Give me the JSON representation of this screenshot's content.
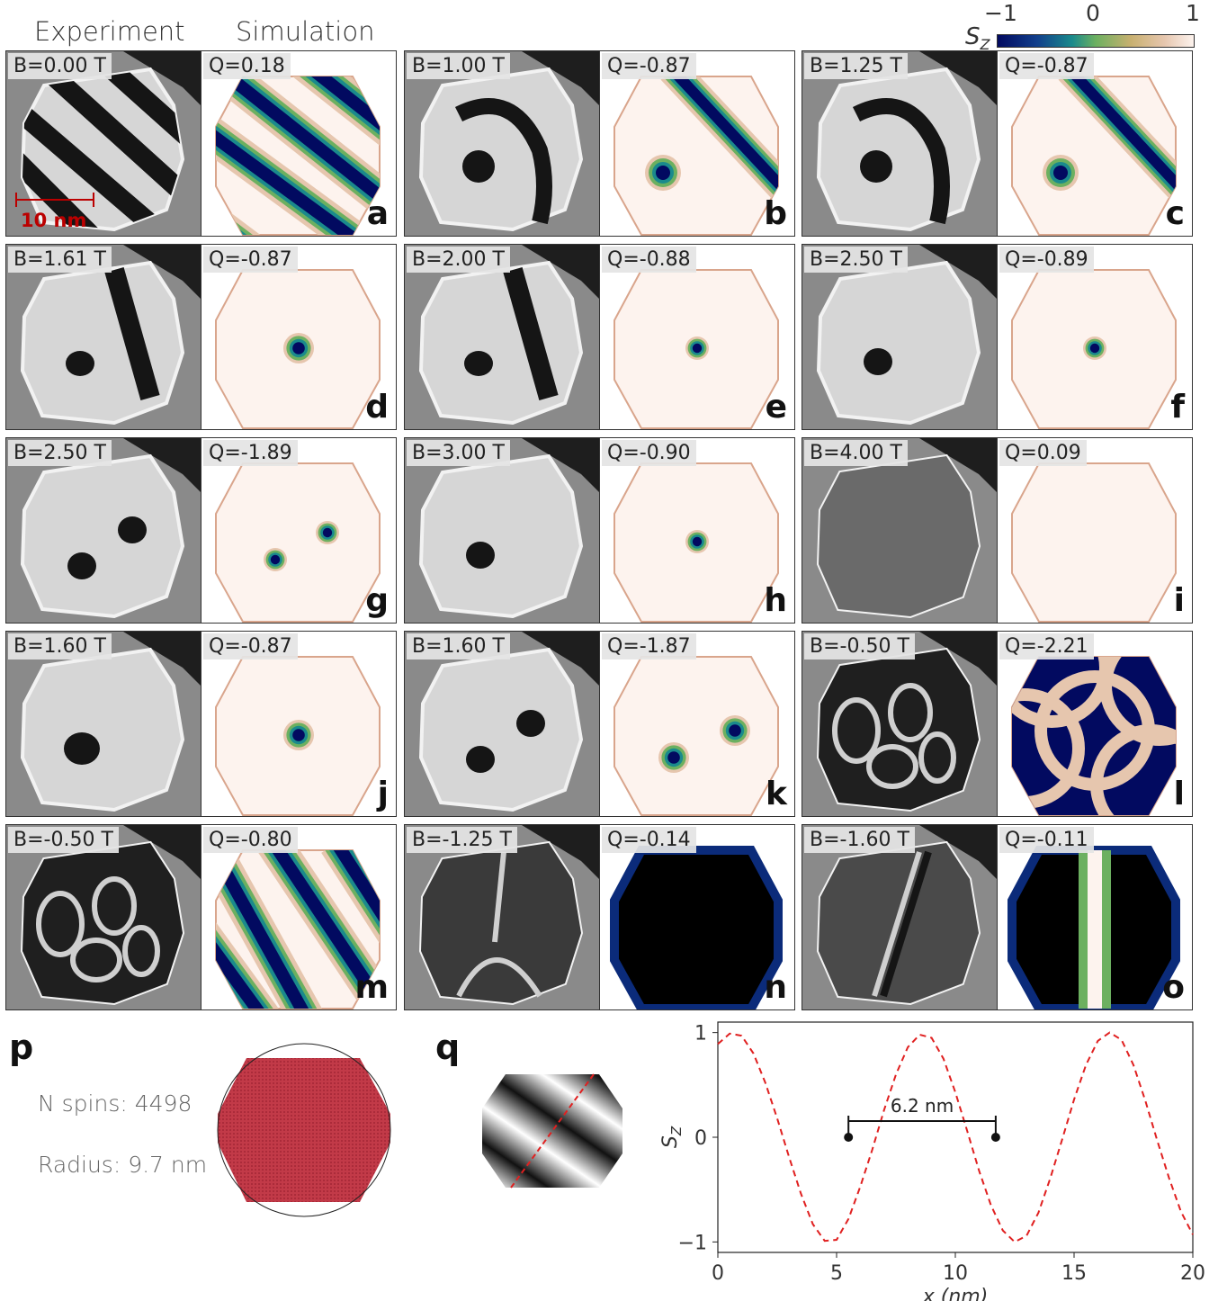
{
  "headers": {
    "experiment": "Experiment",
    "simulation": "Simulation"
  },
  "colorbar": {
    "symbol": "S_Z",
    "ticks": [
      "−1",
      "0",
      "1"
    ],
    "colormap": [
      "#020a60",
      "#1a8a8c",
      "#6cb060",
      "#fdf3ee"
    ]
  },
  "scale_bar": "10 nm",
  "panels": [
    {
      "letter": "a",
      "b": "B=0.00 T",
      "q": "Q=0.18"
    },
    {
      "letter": "b",
      "b": "B=1.00 T",
      "q": "Q=-0.87"
    },
    {
      "letter": "c",
      "b": "B=1.25 T",
      "q": "Q=-0.87"
    },
    {
      "letter": "d",
      "b": "B=1.61 T",
      "q": "Q=-0.87"
    },
    {
      "letter": "e",
      "b": "B=2.00 T",
      "q": "Q=-0.88"
    },
    {
      "letter": "f",
      "b": "B=2.50 T",
      "q": "Q=-0.89"
    },
    {
      "letter": "g",
      "b": "B=2.50 T",
      "q": "Q=-1.89"
    },
    {
      "letter": "h",
      "b": "B=3.00 T",
      "q": "Q=-0.90"
    },
    {
      "letter": "i",
      "b": "B=4.00 T",
      "q": "Q=0.09"
    },
    {
      "letter": "j",
      "b": "B=1.60 T",
      "q": "Q=-0.87"
    },
    {
      "letter": "k",
      "b": "B=1.60 T",
      "q": "Q=-1.87"
    },
    {
      "letter": "l",
      "b": "B=-0.50 T",
      "q": "Q=-2.21"
    },
    {
      "letter": "m",
      "b": "B=-0.50 T",
      "q": "Q=-0.80"
    },
    {
      "letter": "n",
      "b": "B=-1.25 T",
      "q": "Q=-0.14"
    },
    {
      "letter": "o",
      "b": "B=-1.60 T",
      "q": "Q=-0.11"
    }
  ],
  "panel_p": {
    "letter": "p",
    "n_spins": "N spins: 4498",
    "radius": "Radius: 9.7 nm"
  },
  "panel_q": {
    "letter": "q"
  },
  "chart_data": {
    "type": "line",
    "xlabel": "x (nm)",
    "ylabel": "S_Z",
    "xlim": [
      0,
      20
    ],
    "ylim": [
      -1.1,
      1.1
    ],
    "xticks": [
      0,
      5,
      10,
      15,
      20
    ],
    "yticks": [
      -1,
      0,
      1
    ],
    "series": [
      {
        "style": "dashed",
        "color": "#e02020",
        "x": [
          0,
          0.5,
          1,
          1.5,
          2,
          2.5,
          3,
          3.5,
          4,
          4.5,
          5,
          5.5,
          6,
          6.5,
          7,
          7.5,
          8,
          8.5,
          9,
          9.5,
          10,
          10.5,
          11,
          11.5,
          12,
          12.5,
          13,
          13.5,
          14,
          14.5,
          15,
          15.5,
          16,
          16.5,
          17,
          17.5,
          18,
          18.5,
          19,
          19.5,
          20
        ],
        "y": [
          0.89,
          0.99,
          0.97,
          0.8,
          0.52,
          0.18,
          -0.19,
          -0.54,
          -0.83,
          -0.99,
          -0.98,
          -0.78,
          -0.47,
          -0.12,
          0.26,
          0.6,
          0.86,
          0.98,
          0.95,
          0.75,
          0.43,
          0.06,
          -0.32,
          -0.65,
          -0.89,
          -1.0,
          -0.94,
          -0.72,
          -0.39,
          -0.02,
          0.36,
          0.69,
          0.92,
          1.0,
          0.93,
          0.69,
          0.35,
          -0.03,
          -0.39,
          -0.71,
          -0.93
        ]
      }
    ],
    "annotation": {
      "text": "6.2  nm",
      "x_start": 5.5,
      "x_end": 11.7,
      "y": 0
    }
  }
}
